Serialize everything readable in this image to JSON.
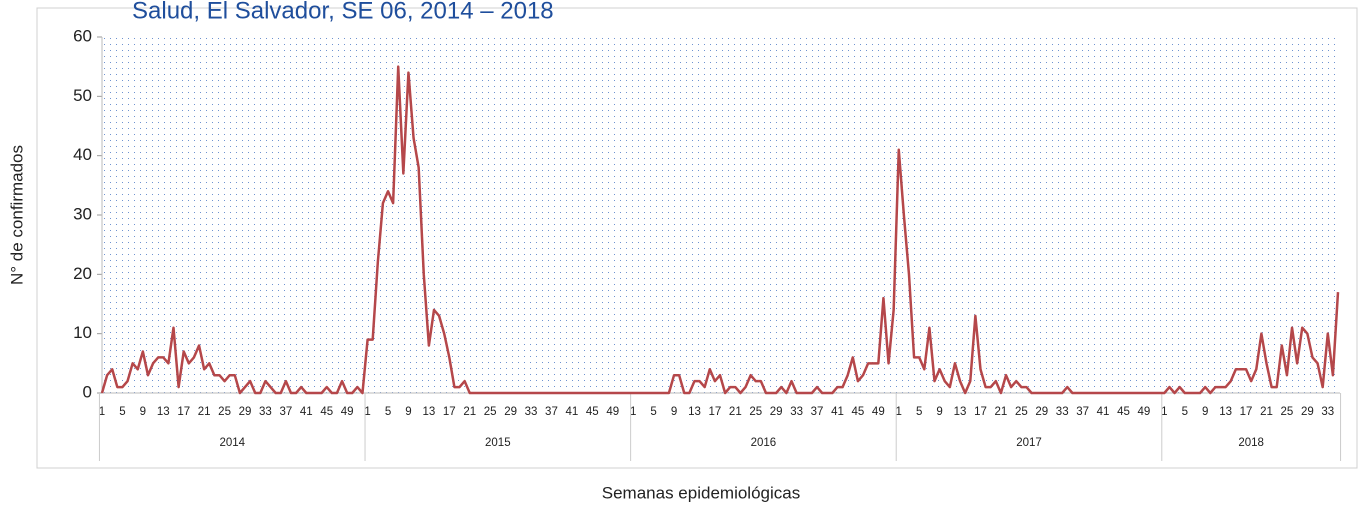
{
  "chart_data": {
    "type": "line",
    "title": "Salud, El Salvador, SE 06, 2014 – 2018",
    "y_label": "N° de confirmados",
    "x_label": "Semanas epidemiológicas",
    "color": "#b5474a",
    "ylim": [
      0,
      60
    ],
    "yticks": [
      0,
      10,
      20,
      30,
      40,
      50,
      60
    ],
    "grid": false,
    "years": [
      {
        "label": "2014",
        "weeks": [
          "1",
          null,
          null,
          null,
          "5",
          null,
          null,
          null,
          "9",
          null,
          null,
          null,
          "13",
          null,
          null,
          null,
          "17",
          null,
          null,
          null,
          "21",
          null,
          null,
          null,
          "25",
          null,
          null,
          null,
          "29",
          null,
          null,
          null,
          "33",
          null,
          null,
          null,
          "37",
          null,
          null,
          null,
          "41",
          null,
          null,
          null,
          "45",
          null,
          null,
          null,
          "49",
          null,
          null,
          null
        ],
        "values": [
          0,
          3,
          4,
          1,
          1,
          2,
          5,
          4,
          7,
          3,
          5,
          6,
          6,
          5,
          11,
          1,
          7,
          5,
          6,
          8,
          4,
          5,
          3,
          3,
          2,
          3,
          3,
          0,
          1,
          2,
          0,
          0,
          2,
          1,
          0,
          0,
          2,
          0,
          0,
          1,
          0,
          0,
          0,
          0,
          1,
          0,
          0,
          2,
          0,
          0,
          1,
          0
        ]
      },
      {
        "label": "2015",
        "weeks": [
          "1",
          null,
          null,
          null,
          "5",
          null,
          null,
          null,
          "9",
          null,
          null,
          null,
          "13",
          null,
          null,
          null,
          "17",
          null,
          null,
          null,
          "21",
          null,
          null,
          null,
          "25",
          null,
          null,
          null,
          "29",
          null,
          null,
          null,
          "33",
          null,
          null,
          null,
          "37",
          null,
          null,
          null,
          "41",
          null,
          null,
          null,
          "45",
          null,
          null,
          null,
          "49",
          null,
          null,
          null
        ],
        "values": [
          9,
          9,
          22,
          32,
          34,
          32,
          55,
          37,
          54,
          43,
          38,
          20,
          8,
          14,
          13,
          10,
          6,
          1,
          1,
          2,
          0,
          0,
          0,
          0,
          0,
          0,
          0,
          0,
          0,
          0,
          0,
          0,
          0,
          0,
          0,
          0,
          0,
          0,
          0,
          0,
          0,
          0,
          0,
          0,
          0,
          0,
          0,
          0,
          0,
          0,
          0,
          0
        ]
      },
      {
        "label": "2016",
        "weeks": [
          "1",
          null,
          null,
          null,
          "5",
          null,
          null,
          null,
          "9",
          null,
          null,
          null,
          "13",
          null,
          null,
          null,
          "17",
          null,
          null,
          null,
          "21",
          null,
          null,
          null,
          "25",
          null,
          null,
          null,
          "29",
          null,
          null,
          null,
          "33",
          null,
          null,
          null,
          "37",
          null,
          null,
          null,
          "41",
          null,
          null,
          null,
          "45",
          null,
          null,
          null,
          "49",
          null,
          null,
          null
        ],
        "values": [
          0,
          0,
          0,
          0,
          0,
          0,
          0,
          0,
          3,
          3,
          0,
          0,
          2,
          2,
          1,
          4,
          2,
          3,
          0,
          1,
          1,
          0,
          1,
          3,
          2,
          2,
          0,
          0,
          0,
          1,
          0,
          2,
          0,
          0,
          0,
          0,
          1,
          0,
          0,
          0,
          1,
          1,
          3,
          6,
          2,
          3,
          5,
          5,
          5,
          16,
          5,
          14
        ]
      },
      {
        "label": "2017",
        "weeks": [
          "1",
          null,
          null,
          null,
          "5",
          null,
          null,
          null,
          "9",
          null,
          null,
          null,
          "13",
          null,
          null,
          null,
          "17",
          null,
          null,
          null,
          "21",
          null,
          null,
          null,
          "25",
          null,
          null,
          null,
          "29",
          null,
          null,
          null,
          "33",
          null,
          null,
          null,
          "37",
          null,
          null,
          null,
          "41",
          null,
          null,
          null,
          "45",
          null,
          null,
          null,
          "49",
          null,
          null,
          null
        ],
        "values": [
          41,
          30,
          20,
          6,
          6,
          4,
          11,
          2,
          4,
          2,
          1,
          5,
          2,
          0,
          2,
          13,
          4,
          1,
          1,
          2,
          0,
          3,
          1,
          2,
          1,
          1,
          0,
          0,
          0,
          0,
          0,
          0,
          0,
          1,
          0,
          0,
          0,
          0,
          0,
          0,
          0,
          0,
          0,
          0,
          0,
          0,
          0,
          0,
          0,
          0,
          0,
          0
        ]
      },
      {
        "label": "2018",
        "weeks": [
          "1",
          null,
          null,
          null,
          "5",
          null,
          null,
          null,
          "9",
          null,
          null,
          null,
          "13",
          null,
          null,
          null,
          "17",
          null,
          null,
          null,
          "21",
          null,
          null,
          null,
          "25",
          null,
          null,
          null,
          "29",
          null,
          null,
          null,
          "33",
          null,
          null
        ],
        "values": [
          0,
          1,
          0,
          1,
          0,
          0,
          0,
          0,
          1,
          0,
          1,
          1,
          1,
          2,
          4,
          4,
          4,
          2,
          4,
          10,
          5,
          1,
          1,
          8,
          3,
          11,
          5,
          11,
          10,
          6,
          5,
          1,
          10,
          3,
          17
        ]
      }
    ]
  }
}
